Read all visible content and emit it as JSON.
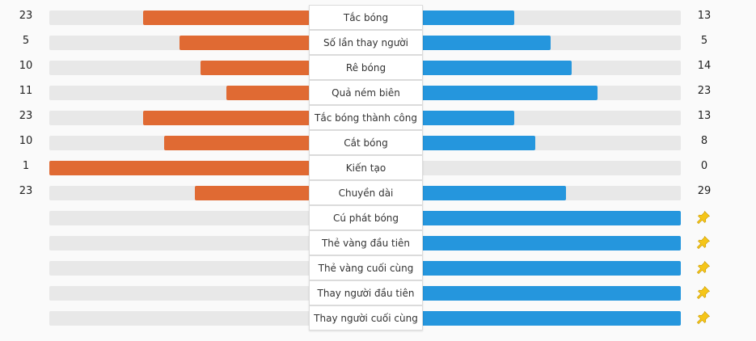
{
  "colors": {
    "home_bar": "#e06a33",
    "away_bar": "#2596dd",
    "track": "#e8e8e8",
    "pin": "#f5c518"
  },
  "stats": [
    {
      "label": "Tắc bóng",
      "home": "23",
      "away": "13",
      "home_share": 0.64,
      "away_share": 0.36
    },
    {
      "label": "Số lần thay người",
      "home": "5",
      "away": "5",
      "home_share": 0.5,
      "away_share": 0.5
    },
    {
      "label": "Rê bóng",
      "home": "10",
      "away": "14",
      "home_share": 0.42,
      "away_share": 0.58
    },
    {
      "label": "Quả ném biên",
      "home": "11",
      "away": "23",
      "home_share": 0.32,
      "away_share": 0.68
    },
    {
      "label": "Tắc bóng thành công",
      "home": "23",
      "away": "13",
      "home_share": 0.64,
      "away_share": 0.36
    },
    {
      "label": "Cắt bóng",
      "home": "10",
      "away": "8",
      "home_share": 0.56,
      "away_share": 0.44
    },
    {
      "label": "Kiến tạo",
      "home": "1",
      "away": "0",
      "home_share": 1.0,
      "away_share": 0.0
    },
    {
      "label": "Chuyền dài",
      "home": "23",
      "away": "29",
      "home_share": 0.44,
      "away_share": 0.56
    },
    {
      "label": "Cú phát bóng",
      "home": "",
      "away": "",
      "home_share": 0.0,
      "away_share": 1.0,
      "away_icon": "pin-icon"
    },
    {
      "label": "Thẻ vàng đầu tiên",
      "home": "",
      "away": "",
      "home_share": 0.0,
      "away_share": 1.0,
      "away_icon": "pin-icon"
    },
    {
      "label": "Thẻ vàng cuối cùng",
      "home": "",
      "away": "",
      "home_share": 0.0,
      "away_share": 1.0,
      "away_icon": "pin-icon"
    },
    {
      "label": "Thay người đầu tiên",
      "home": "",
      "away": "",
      "home_share": 0.0,
      "away_share": 1.0,
      "away_icon": "pin-icon"
    },
    {
      "label": "Thay người cuối cùng",
      "home": "",
      "away": "",
      "home_share": 0.0,
      "away_share": 1.0,
      "away_icon": "pin-icon"
    }
  ]
}
